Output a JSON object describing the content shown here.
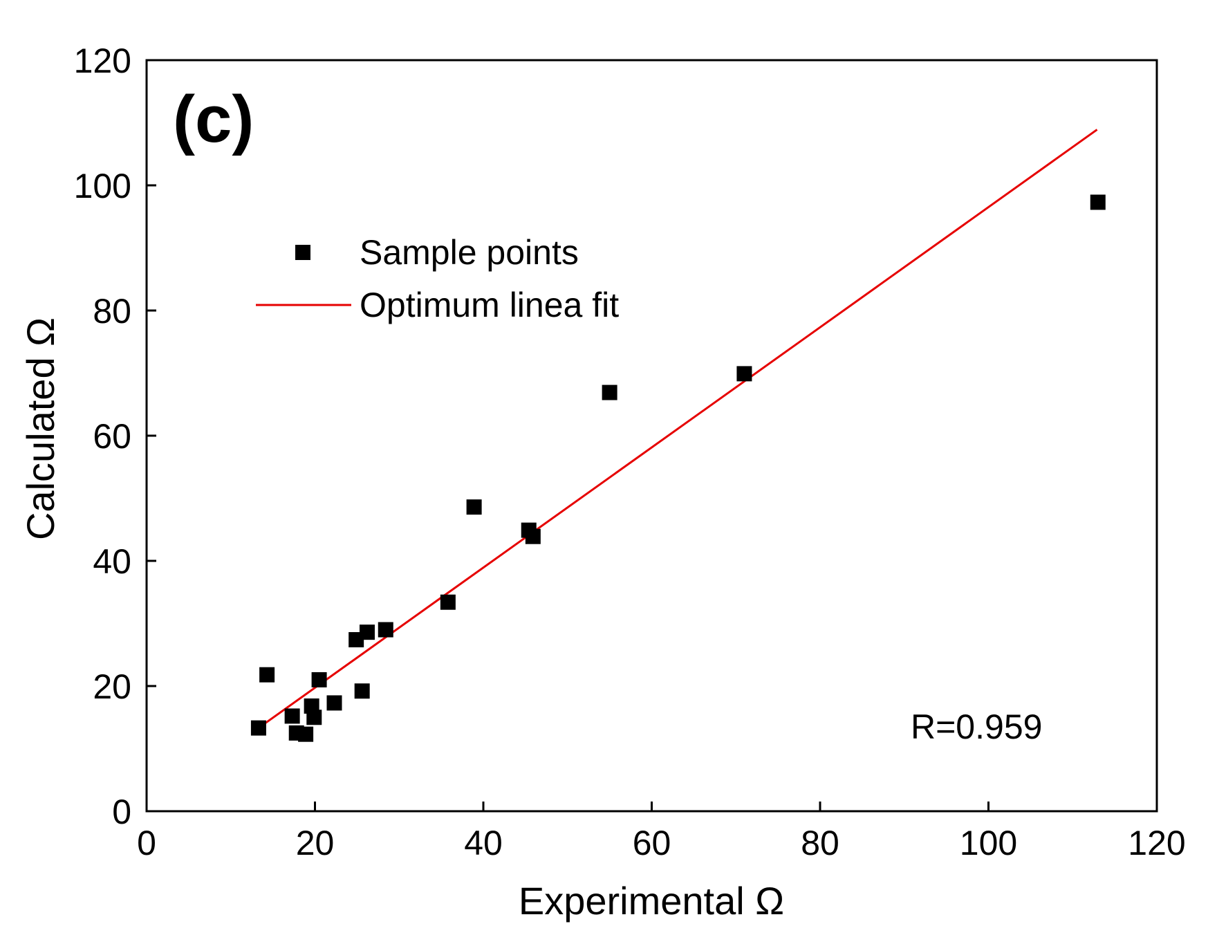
{
  "chart_data": {
    "type": "scatter",
    "panel_label": "(c)",
    "xlabel": "Experimental Ω",
    "ylabel": "Calculated Ω",
    "xlim": [
      0,
      120
    ],
    "ylim": [
      0,
      120
    ],
    "xticks": [
      0,
      20,
      40,
      60,
      80,
      100,
      120
    ],
    "yticks": [
      0,
      20,
      40,
      60,
      80,
      100,
      120
    ],
    "grid": false,
    "legend_position": "upper-left",
    "series": [
      {
        "name": "Sample points",
        "kind": "scatter",
        "marker": "square",
        "color": "#000000",
        "x": [
          13.3,
          14.3,
          17.3,
          17.8,
          18.9,
          19.6,
          19.9,
          20.5,
          22.3,
          24.9,
          25.6,
          26.2,
          28.4,
          35.8,
          38.9,
          45.4,
          45.9,
          55.0,
          71.0,
          113.0
        ],
        "y": [
          13.3,
          21.8,
          15.2,
          12.5,
          12.3,
          16.8,
          15.0,
          21.0,
          17.3,
          27.4,
          19.2,
          28.6,
          29.0,
          33.4,
          48.6,
          44.9,
          43.9,
          66.9,
          69.9,
          97.3
        ]
      },
      {
        "name": "Optimum linea fit",
        "kind": "line",
        "color": "#e60000",
        "x": [
          13.3,
          112.9
        ],
        "y": [
          13.3,
          108.9
        ]
      }
    ],
    "annotation": "R=0.959"
  }
}
